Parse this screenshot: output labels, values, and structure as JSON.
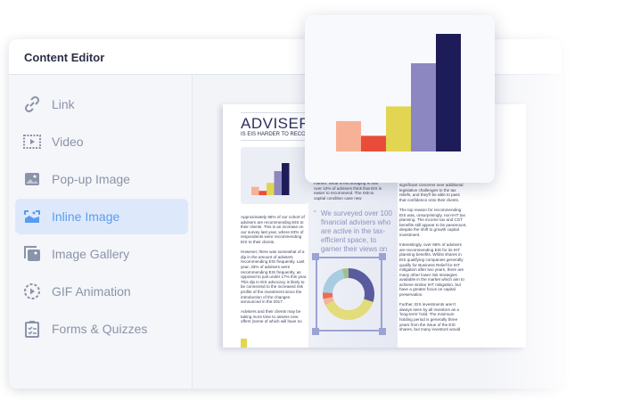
{
  "panel": {
    "title": "Content Editor"
  },
  "sidebar": {
    "items": [
      {
        "label": "Link",
        "icon": "link-icon"
      },
      {
        "label": "Video",
        "icon": "video-icon"
      },
      {
        "label": "Pop-up Image",
        "icon": "popup-image-icon"
      },
      {
        "label": "Inline Image",
        "icon": "inline-image-icon",
        "active": true
      },
      {
        "label": "Image Gallery",
        "icon": "image-gallery-icon"
      },
      {
        "label": "GIF Animation",
        "icon": "gif-animation-icon"
      },
      {
        "label": "Forms & Quizzes",
        "icon": "forms-quizzes-icon"
      }
    ]
  },
  "colors": {
    "active": "#5a9df0",
    "active_bg": "#dde9fb",
    "text": "#8a93a8"
  },
  "document": {
    "title": "ADVISER SU",
    "subtitle": "IS EIS HARDER TO RECOMM",
    "left_text": "Approximately 86% of our cohort of advisers are recommending EIS to their clients. This is an increase on our survey last year, where 83% of respondents were recommending EIS to their clients.\n\nHowever, there was somewhat of a dip in the amount of advisers recommending EIS frequently. Last year, 33% of advisers were recommending EIS frequently, as opposed to just under 17% this year. This dip in EIS advocacy is likely to be connected to the increased risk profile of the investment since the introduction of the changes announced in the 2017.\n\nAdvisers and their clients may be taking more time to assess new offers (some of which will have no",
    "mid_text": "market. What is encouraging is that over 10% of advisers think that EIS is easier to recommend. The risk-to capital condition case new",
    "quote": "We surveyed over 100 financial advisers who are active in the tax-efficient space, to garner their views on",
    "right_text": "significant concerns over additional legislative challenges to the tax reliefs, and they'll be able to pass that confidence onto their clients.\n\nThe top reason for recommending EIS was, unsurprisingly, non-IHT tax planning. The income tax and CGT benefits still appear to be paramount, despite the shift to growth capital investment.\n\nInterestingly, over 66% of advisers are recommending EIS for its IHT planning benefits. Whilst shares in EIS qualifying companies generally qualify for Business Relief for IHT mitigation after two years, there are many other lower risk strategies available in the market which aim to achieve similar IHT mitigation, but have a greater focus on capital preservation.\n\nFurther, EIS investments aren't always seen by all investors as a 'long-term' hold. The minimum holding period is generally three years from the issue of the EIS shares, but many investors would"
  },
  "bar_chart": {
    "type": "bar",
    "values": [
      31,
      16,
      46,
      90,
      120
    ],
    "colors": [
      "#f6b196",
      "#ea4c3a",
      "#e1d552",
      "#8c87c1",
      "#1e1c58"
    ]
  },
  "donut_chart": {
    "type": "pie",
    "values": [
      30,
      38,
      4,
      4,
      20,
      4
    ],
    "colors": [
      "#5a5a9e",
      "#e2dc7a",
      "#f3b49c",
      "#ea6b5a",
      "#a9cde0",
      "#9fbf88"
    ]
  }
}
